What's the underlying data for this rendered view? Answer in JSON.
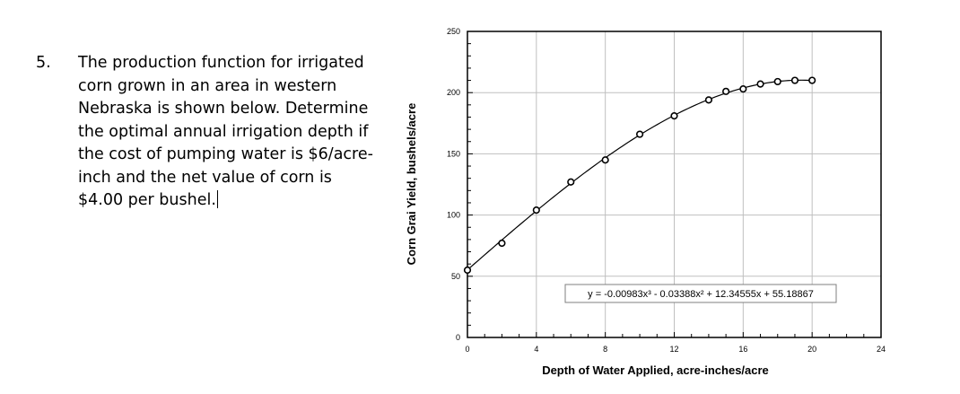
{
  "question": {
    "number": "5.",
    "text": "The production function for irrigated corn grown in an area in western Nebraska is shown below. Determine the optimal annual irrigation depth if the cost of pumping water is $6/acre-inch and the net value of corn is $4.00 per bushel."
  },
  "chart_data": {
    "type": "scatter",
    "xlabel": "Depth of Water Applied, acre-inches/acre",
    "ylabel": "Corn Grai Yield, bushels/acre",
    "xlim": [
      0,
      24
    ],
    "ylim": [
      0,
      250
    ],
    "x_ticks": [
      "0",
      "4",
      "8",
      "12",
      "16",
      "20",
      "24"
    ],
    "y_ticks": [
      "0",
      "50",
      "100",
      "150",
      "200",
      "250"
    ],
    "grid": true,
    "trendline": {
      "type": "polynomial",
      "degree": 3,
      "coefficients": [
        -0.00983,
        -0.03388,
        12.34555,
        55.18867
      ],
      "equation": "y = -0.00983x³ - 0.03388x² + 12.34555x + 55.18867",
      "x_range": [
        0,
        20
      ]
    },
    "series": [
      {
        "x": [
          0,
          2,
          4,
          6,
          8,
          10,
          12,
          14,
          15,
          16,
          17,
          18,
          19,
          20
        ],
        "y": [
          55,
          77,
          104,
          127,
          145,
          166,
          181,
          194,
          201,
          203,
          207,
          209,
          210,
          210
        ]
      }
    ],
    "colors": {
      "marker": "#000000",
      "line": "#000000",
      "grid": "#bfbfbf"
    }
  }
}
